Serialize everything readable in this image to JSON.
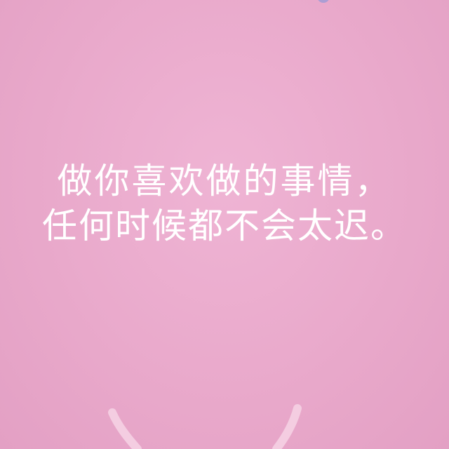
{
  "quote": {
    "line1": "做你喜欢做的事情，",
    "line2": "任何时候都不会太迟。"
  },
  "colors": {
    "background": "#eaabcc",
    "text": "#ffffff",
    "graphic": "#f4cde1"
  }
}
